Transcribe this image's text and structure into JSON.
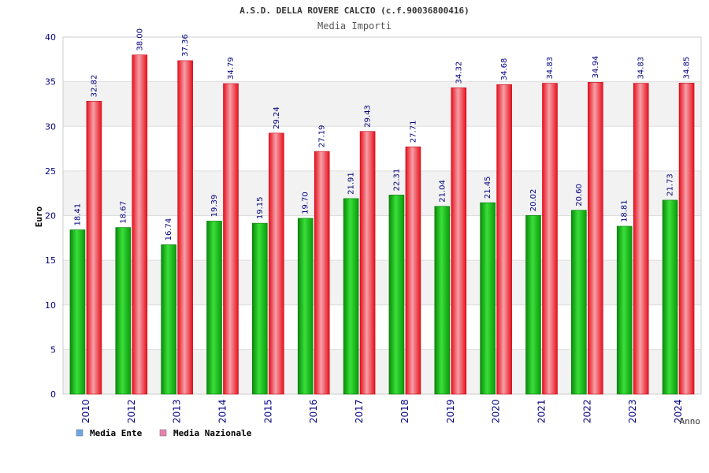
{
  "chart_data": {
    "type": "bar",
    "title": "A.S.D. DELLA ROVERE CALCIO (c.f.90036800416)",
    "subtitle": "Media Importi",
    "xlabel": "Anno",
    "ylabel": "Euro",
    "ylim": [
      0,
      40
    ],
    "yticks": [
      0,
      5,
      10,
      15,
      20,
      25,
      30,
      35,
      40
    ],
    "grid": true,
    "legend_position": "bottom-left",
    "categories": [
      "2010",
      "2012",
      "2013",
      "2014",
      "2015",
      "2016",
      "2017",
      "2018",
      "2019",
      "2020",
      "2021",
      "2022",
      "2023",
      "2024"
    ],
    "series": [
      {
        "name": "Media Ente",
        "color": "#1fbf1f",
        "legend_color": "#6ca6e8",
        "values": [
          18.41,
          18.67,
          16.74,
          19.39,
          19.15,
          19.7,
          21.91,
          22.31,
          21.04,
          21.45,
          20.02,
          20.6,
          18.81,
          21.73
        ],
        "labels": [
          "18.41",
          "18.67",
          "16.74",
          "19.39",
          "19.15",
          "19.70",
          "21.91",
          "22.31",
          "21.04",
          "21.45",
          "20.02",
          "20.60",
          "18.81",
          "21.73"
        ]
      },
      {
        "name": "Media Nazionale",
        "color": "#f01c2a",
        "legend_color": "#e880b0",
        "values": [
          32.82,
          38.0,
          37.36,
          34.79,
          29.24,
          27.19,
          29.43,
          27.71,
          34.32,
          34.68,
          34.83,
          34.94,
          34.83,
          34.85
        ],
        "labels": [
          "32.82",
          "38.00",
          "37.36",
          "34.79",
          "29.24",
          "27.19",
          "29.43",
          "27.71",
          "34.32",
          "34.68",
          "34.83",
          "34.94",
          "34.83",
          "34.85"
        ]
      }
    ],
    "colors": {
      "title": "#333333",
      "subtitle": "#555555",
      "axis_labels": "#000080",
      "band_light": "#f2f2f2",
      "band_white": "#ffffff",
      "grid": "#dddddd"
    }
  }
}
